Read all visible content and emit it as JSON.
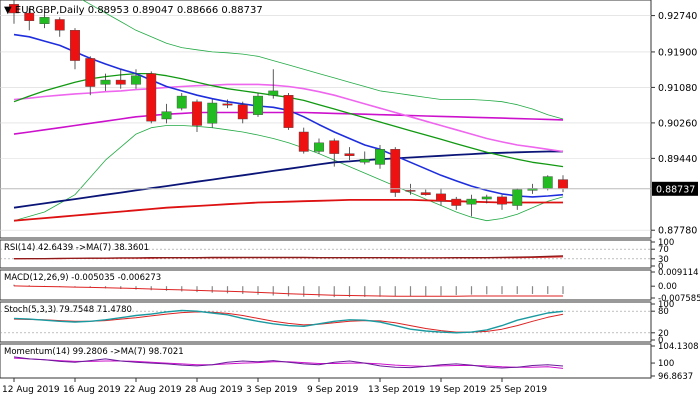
{
  "colors": {
    "up": "#22bb22",
    "down": "#ee1111",
    "sma_fast": "#1e2edd",
    "sma_mid": "#119911",
    "ma_pink": "#ee66ee",
    "ma_magenta": "#cc11cc",
    "ma_navy": "#0a1577",
    "ma_red": "#dd1111",
    "band": "#22aa44",
    "grid": "#d8d8d8",
    "axis": "#333333"
  },
  "main": {
    "title": "EURGBP,Daily",
    "ohlc": "0.88953 0.89047 0.88666 0.88737",
    "current_price": "0.88737",
    "price_ticks": [
      "0.92740",
      "0.91900",
      "0.91080",
      "0.90260",
      "0.89440",
      "0.87780"
    ]
  },
  "subpanels": [
    {
      "id": "rsi",
      "legend": "RSI(14) 42.6439  ->MA(7) 38.3601",
      "ticks": [
        "100",
        "70",
        "30",
        "0"
      ]
    },
    {
      "id": "macd",
      "legend": "MACD(12,26,9) -0.005035 -0.006273",
      "ticks": [
        "0.009114",
        "0.00",
        "-0.007585"
      ]
    },
    {
      "id": "stoch",
      "legend": "Stoch(5,3,3) 79.7548 71.4780",
      "ticks": [
        "100",
        "80",
        "20",
        "0"
      ]
    },
    {
      "id": "momentum",
      "legend": "Momentum(14) 99.2806  ->MA(7) 98.7021",
      "ticks": [
        "104.1308",
        "100",
        "96.8637"
      ]
    }
  ],
  "date_labels": [
    "12 Aug 2019",
    "16 Aug 2019",
    "22 Aug 2019",
    "28 Aug 2019",
    "3 Sep 2019",
    "9 Sep 2019",
    "13 Sep 2019",
    "19 Sep 2019",
    "25 Sep 2019"
  ],
  "chart_data": {
    "type": "candlestick",
    "candles": [
      {
        "o": 0.93,
        "h": 0.9312,
        "l": 0.9255,
        "c": 0.928
      },
      {
        "o": 0.928,
        "h": 0.9292,
        "l": 0.924,
        "c": 0.9262
      },
      {
        "o": 0.9255,
        "h": 0.9285,
        "l": 0.9245,
        "c": 0.927
      },
      {
        "o": 0.9265,
        "h": 0.927,
        "l": 0.9225,
        "c": 0.924
      },
      {
        "o": 0.924,
        "h": 0.9245,
        "l": 0.915,
        "c": 0.917
      },
      {
        "o": 0.9175,
        "h": 0.918,
        "l": 0.909,
        "c": 0.911
      },
      {
        "o": 0.9115,
        "h": 0.914,
        "l": 0.91,
        "c": 0.9125
      },
      {
        "o": 0.9125,
        "h": 0.915,
        "l": 0.9105,
        "c": 0.9115
      },
      {
        "o": 0.9115,
        "h": 0.915,
        "l": 0.9105,
        "c": 0.9135
      },
      {
        "o": 0.914,
        "h": 0.9145,
        "l": 0.9025,
        "c": 0.903
      },
      {
        "o": 0.9035,
        "h": 0.907,
        "l": 0.9025,
        "c": 0.9052
      },
      {
        "o": 0.906,
        "h": 0.9095,
        "l": 0.9055,
        "c": 0.9088
      },
      {
        "o": 0.9075,
        "h": 0.908,
        "l": 0.9005,
        "c": 0.902
      },
      {
        "o": 0.9025,
        "h": 0.908,
        "l": 0.9015,
        "c": 0.9072
      },
      {
        "o": 0.907,
        "h": 0.908,
        "l": 0.906,
        "c": 0.9067
      },
      {
        "o": 0.9068,
        "h": 0.9075,
        "l": 0.9025,
        "c": 0.9035
      },
      {
        "o": 0.9045,
        "h": 0.9095,
        "l": 0.904,
        "c": 0.9088
      },
      {
        "o": 0.909,
        "h": 0.915,
        "l": 0.9082,
        "c": 0.91
      },
      {
        "o": 0.909,
        "h": 0.9095,
        "l": 0.901,
        "c": 0.9015
      },
      {
        "o": 0.9005,
        "h": 0.9015,
        "l": 0.8955,
        "c": 0.896
      },
      {
        "o": 0.896,
        "h": 0.899,
        "l": 0.8955,
        "c": 0.898
      },
      {
        "o": 0.8985,
        "h": 0.899,
        "l": 0.8925,
        "c": 0.8955
      },
      {
        "o": 0.8955,
        "h": 0.897,
        "l": 0.894,
        "c": 0.895
      },
      {
        "o": 0.8935,
        "h": 0.896,
        "l": 0.893,
        "c": 0.8942
      },
      {
        "o": 0.893,
        "h": 0.8975,
        "l": 0.892,
        "c": 0.8965
      },
      {
        "o": 0.8965,
        "h": 0.897,
        "l": 0.8855,
        "c": 0.8865
      },
      {
        "o": 0.887,
        "h": 0.8885,
        "l": 0.886,
        "c": 0.8868
      },
      {
        "o": 0.8865,
        "h": 0.8872,
        "l": 0.8858,
        "c": 0.886
      },
      {
        "o": 0.8862,
        "h": 0.8875,
        "l": 0.8835,
        "c": 0.8845
      },
      {
        "o": 0.885,
        "h": 0.8855,
        "l": 0.8825,
        "c": 0.8835
      },
      {
        "o": 0.8838,
        "h": 0.886,
        "l": 0.881,
        "c": 0.885
      },
      {
        "o": 0.885,
        "h": 0.886,
        "l": 0.884,
        "c": 0.8855
      },
      {
        "o": 0.8855,
        "h": 0.886,
        "l": 0.8825,
        "c": 0.8838
      },
      {
        "o": 0.8835,
        "h": 0.8875,
        "l": 0.8825,
        "c": 0.8872
      },
      {
        "o": 0.887,
        "h": 0.8885,
        "l": 0.8862,
        "c": 0.8875
      },
      {
        "o": 0.8875,
        "h": 0.8905,
        "l": 0.887,
        "c": 0.8902
      },
      {
        "o": 0.8895,
        "h": 0.8905,
        "l": 0.8866,
        "c": 0.8874
      }
    ],
    "sma_fast": [
      0.923,
      0.9225,
      0.9215,
      0.9205,
      0.919,
      0.9175,
      0.9162,
      0.915,
      0.914,
      0.9125,
      0.911,
      0.91,
      0.909,
      0.9082,
      0.9075,
      0.907,
      0.9065,
      0.9062,
      0.9055,
      0.904,
      0.9022,
      0.9005,
      0.899,
      0.8975,
      0.8965,
      0.895,
      0.8935,
      0.892,
      0.8905,
      0.8892,
      0.888,
      0.887,
      0.8862,
      0.8857,
      0.8855,
      0.8857,
      0.886
    ],
    "sma_mid": [
      0.9075,
      0.9088,
      0.91,
      0.911,
      0.912,
      0.9128,
      0.9133,
      0.9137,
      0.914,
      0.914,
      0.9135,
      0.9128,
      0.912,
      0.9112,
      0.9105,
      0.91,
      0.9095,
      0.909,
      0.9085,
      0.9078,
      0.9068,
      0.9058,
      0.9048,
      0.9038,
      0.9028,
      0.9018,
      0.9008,
      0.8998,
      0.8988,
      0.8978,
      0.8968,
      0.8958,
      0.895,
      0.8942,
      0.8935,
      0.893,
      0.8925
    ],
    "ma_pink": [
      0.908,
      0.9083,
      0.9087,
      0.909,
      0.9093,
      0.9095,
      0.9098,
      0.91,
      0.9103,
      0.9105,
      0.9108,
      0.911,
      0.9112,
      0.9113,
      0.9115,
      0.9115,
      0.9115,
      0.9113,
      0.911,
      0.9105,
      0.9098,
      0.909,
      0.908,
      0.907,
      0.906,
      0.905,
      0.904,
      0.903,
      0.902,
      0.901,
      0.9,
      0.899,
      0.8982,
      0.8975,
      0.897,
      0.8965,
      0.896
    ],
    "ma_magenta": [
      0.9,
      0.9005,
      0.901,
      0.9015,
      0.902,
      0.9025,
      0.903,
      0.9035,
      0.904,
      0.9043,
      0.9046,
      0.9048,
      0.905,
      0.905,
      0.905,
      0.905,
      0.905,
      0.905,
      0.905,
      0.905,
      0.9049,
      0.9048,
      0.9047,
      0.9046,
      0.9045,
      0.9044,
      0.9043,
      0.9042,
      0.9041,
      0.904,
      0.9039,
      0.9038,
      0.9037,
      0.9036,
      0.9035,
      0.9034,
      0.9033
    ],
    "ma_navy": [
      0.883,
      0.8835,
      0.884,
      0.8845,
      0.885,
      0.8855,
      0.886,
      0.8865,
      0.887,
      0.8875,
      0.888,
      0.8885,
      0.889,
      0.8895,
      0.89,
      0.8905,
      0.891,
      0.8915,
      0.892,
      0.8925,
      0.893,
      0.8935,
      0.8937,
      0.894,
      0.8942,
      0.8944,
      0.8946,
      0.8948,
      0.895,
      0.8952,
      0.8954,
      0.8956,
      0.8957,
      0.8958,
      0.8959,
      0.896,
      0.896
    ],
    "ma_red": [
      0.88,
      0.8803,
      0.8806,
      0.8809,
      0.8812,
      0.8815,
      0.8818,
      0.8821,
      0.8824,
      0.8827,
      0.883,
      0.8832,
      0.8834,
      0.8836,
      0.8838,
      0.884,
      0.8842,
      0.8843,
      0.8844,
      0.8845,
      0.8846,
      0.8847,
      0.8848,
      0.8848,
      0.8848,
      0.8848,
      0.8848,
      0.8847,
      0.8846,
      0.8845,
      0.8844,
      0.8843,
      0.8842,
      0.8842,
      0.8842,
      0.8842,
      0.8842
    ],
    "band_upper": [
      0.936,
      0.935,
      0.934,
      0.933,
      0.932,
      0.93,
      0.928,
      0.926,
      0.924,
      0.9225,
      0.921,
      0.92,
      0.9195,
      0.919,
      0.9188,
      0.9185,
      0.918,
      0.917,
      0.916,
      0.915,
      0.914,
      0.913,
      0.912,
      0.911,
      0.91,
      0.9095,
      0.909,
      0.9085,
      0.908,
      0.908,
      0.908,
      0.9078,
      0.9075,
      0.9068,
      0.9058,
      0.9045,
      0.9035
    ],
    "band_lower": [
      0.88,
      0.881,
      0.882,
      0.884,
      0.886,
      0.89,
      0.894,
      0.897,
      0.9,
      0.9015,
      0.902,
      0.902,
      0.9018,
      0.9015,
      0.901,
      0.9005,
      0.8998,
      0.899,
      0.898,
      0.8968,
      0.8955,
      0.894,
      0.8925,
      0.891,
      0.8895,
      0.888,
      0.8865,
      0.885,
      0.8835,
      0.882,
      0.8808,
      0.88,
      0.8805,
      0.8815,
      0.883,
      0.8845,
      0.8855
    ],
    "price_range": [
      0.876,
      0.931
    ],
    "rsi": {
      "ylim": [
        0,
        100
      ],
      "rsi": [
        30,
        31,
        31,
        32,
        32,
        33,
        33,
        34,
        34,
        35,
        35,
        35,
        35,
        36,
        36,
        36,
        36,
        36,
        36,
        36,
        35,
        35,
        35,
        35,
        35,
        34,
        34,
        34,
        34,
        35,
        35,
        35,
        36,
        37,
        38,
        40,
        42.6
      ],
      "ma": [
        31,
        31,
        31,
        31,
        32,
        32,
        32,
        33,
        33,
        33,
        34,
        34,
        34,
        34,
        34,
        35,
        35,
        35,
        35,
        35,
        35,
        35,
        35,
        35,
        35,
        35,
        34,
        34,
        34,
        34,
        34,
        35,
        35,
        35,
        36,
        37,
        38.4
      ]
    },
    "macd": {
      "ylim": [
        -0.007585,
        0.009114
      ],
      "hist": [
        0.001,
        0.0006,
        0.0002,
        -0.0002,
        -0.0006,
        -0.001,
        -0.0014,
        -0.0018,
        -0.0022,
        -0.0026,
        -0.003,
        -0.0034,
        -0.0038,
        -0.0042,
        -0.0046,
        -0.005,
        -0.0055,
        -0.006,
        -0.0065,
        -0.0068,
        -0.007,
        -0.007,
        -0.007,
        -0.0069,
        -0.0068,
        -0.0066,
        -0.0064,
        -0.0062,
        -0.006,
        -0.0057,
        -0.0054,
        -0.0052,
        -0.0051,
        -0.005,
        -0.005,
        -0.005,
        -0.005
      ],
      "signal": [
        0.0002,
        0.0,
        -0.0002,
        -0.0004,
        -0.0006,
        -0.0008,
        -0.001,
        -0.0012,
        -0.0015,
        -0.0018,
        -0.0021,
        -0.0024,
        -0.0027,
        -0.003,
        -0.0033,
        -0.0036,
        -0.004,
        -0.0044,
        -0.0048,
        -0.0052,
        -0.0055,
        -0.0058,
        -0.006,
        -0.0062,
        -0.0063,
        -0.0064,
        -0.0065,
        -0.0065,
        -0.0065,
        -0.0064,
        -0.0063,
        -0.0063,
        -0.0063,
        -0.0063,
        -0.0063,
        -0.0063,
        -0.0063
      ]
    },
    "stoch": {
      "ylim": [
        0,
        100
      ],
      "k": [
        60,
        58,
        55,
        52,
        50,
        52,
        56,
        62,
        68,
        72,
        78,
        82,
        80,
        75,
        70,
        60,
        52,
        45,
        40,
        38,
        45,
        52,
        56,
        55,
        50,
        40,
        30,
        25,
        22,
        20,
        22,
        28,
        40,
        55,
        65,
        75,
        79.75
      ],
      "d": [
        58,
        57,
        56,
        54,
        52,
        52,
        54,
        58,
        62,
        67,
        72,
        76,
        78,
        77,
        74,
        68,
        60,
        52,
        46,
        42,
        44,
        48,
        52,
        54,
        53,
        48,
        40,
        32,
        26,
        22,
        22,
        24,
        30,
        40,
        52,
        63,
        71.48
      ]
    },
    "momentum": {
      "ylim": [
        96.8637,
        104.1308
      ],
      "mom": [
        101.5,
        101.0,
        100.8,
        100.4,
        100.2,
        100.6,
        101.0,
        100.5,
        100.2,
        100.0,
        99.8,
        99.5,
        99.3,
        99.6,
        100.2,
        100.5,
        100.3,
        100.6,
        100.2,
        99.8,
        99.6,
        100.2,
        100.5,
        100.0,
        99.3,
        99.0,
        98.9,
        99.2,
        99.6,
        99.8,
        99.5,
        99.0,
        98.8,
        99.0,
        99.4,
        99.6,
        99.28
      ],
      "ma": [
        101.2,
        101.0,
        100.8,
        100.6,
        100.4,
        100.4,
        100.5,
        100.5,
        100.4,
        100.2,
        100.0,
        99.8,
        99.6,
        99.6,
        99.8,
        100.0,
        100.1,
        100.3,
        100.3,
        100.1,
        99.9,
        99.9,
        100.0,
        100.0,
        99.8,
        99.5,
        99.3,
        99.2,
        99.3,
        99.4,
        99.4,
        99.3,
        99.1,
        99.0,
        99.0,
        99.1,
        98.7
      ]
    }
  }
}
